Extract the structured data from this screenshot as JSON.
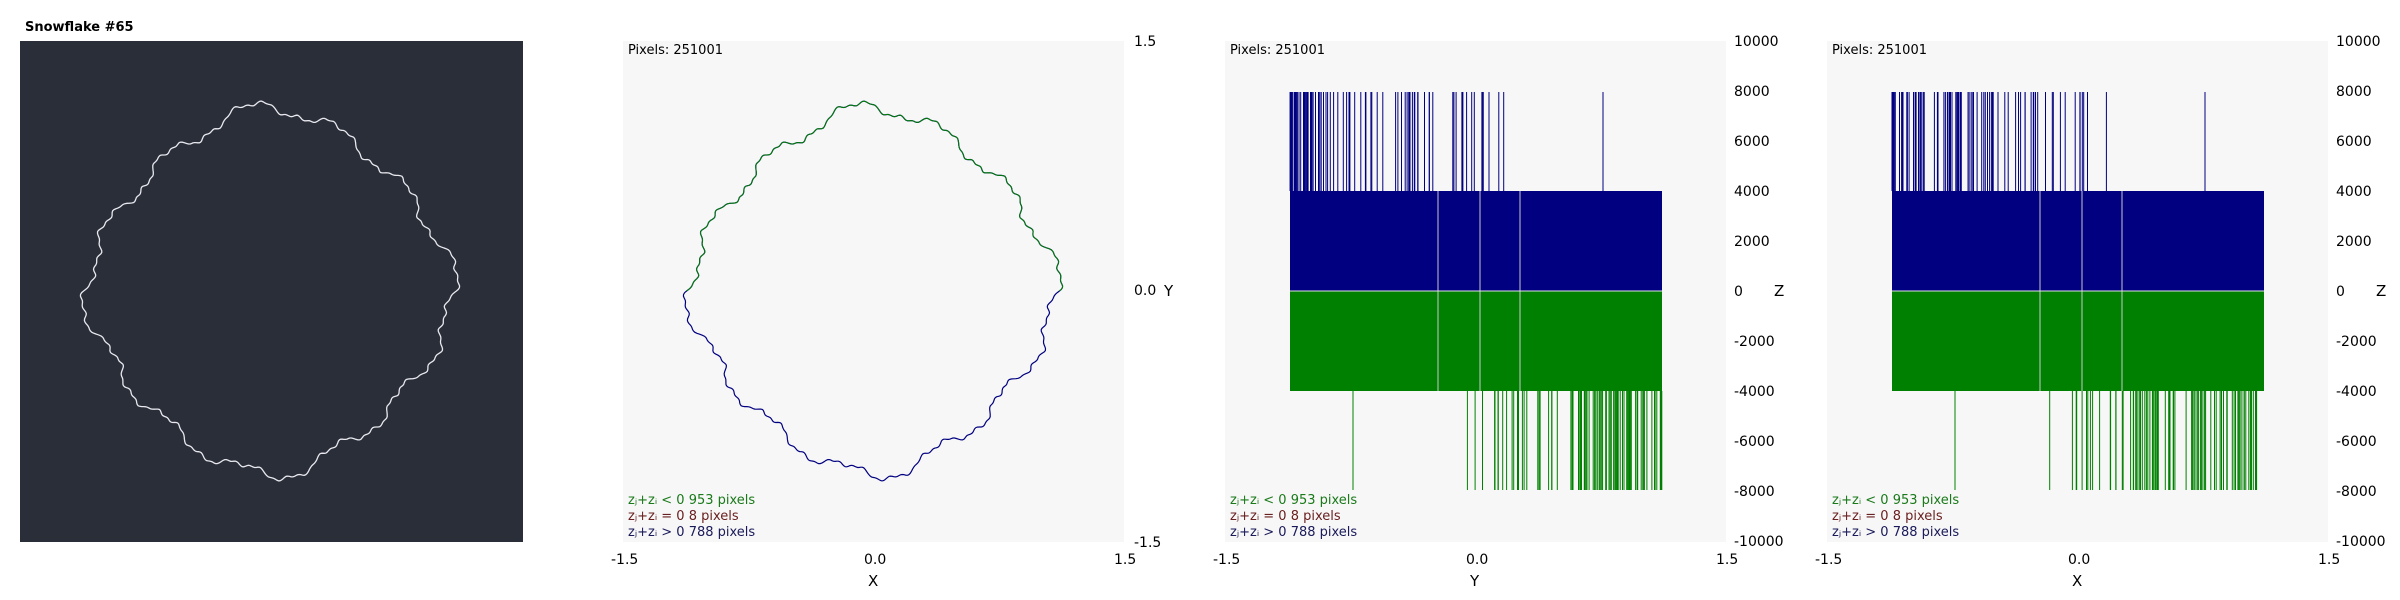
{
  "colors": {
    "dark_bg": "#2a2e39",
    "plot_bg": "#f7f7f7",
    "neg_green": "#008000",
    "pos_navy": "#000080",
    "zero_red": "#6a2020"
  },
  "panel1": {
    "title": "Snowflake #65"
  },
  "panel2": {
    "pixels_label": "Pixels: 251001",
    "x_ticks": [
      "-1.5",
      "0.0",
      "1.5"
    ],
    "y_ticks": [
      "1.5",
      "0.0",
      "-1.5"
    ],
    "x_axis_label": "X",
    "y_axis_label": "Y",
    "legend": [
      "zⱼ+zᵢ < 0  953 pixels",
      "zⱼ+zᵢ = 0  8 pixels",
      "zⱼ+zᵢ > 0  788 pixels"
    ]
  },
  "panel3": {
    "pixels_label": "Pixels: 251001",
    "x_ticks": [
      "-1.5",
      "0.0",
      "1.5"
    ],
    "z_ticks": [
      "10000",
      "8000",
      "6000",
      "4000",
      "2000",
      "0",
      "-2000",
      "-4000",
      "-6000",
      "-8000",
      "-10000"
    ],
    "x_axis_label": "Y",
    "z_axis_label": "Z",
    "legend": [
      "zⱼ+zᵢ < 0  953 pixels",
      "zⱼ+zᵢ = 0  8 pixels",
      "zⱼ+zᵢ > 0  788 pixels"
    ]
  },
  "panel4": {
    "pixels_label": "Pixels: 251001",
    "x_ticks": [
      "-1.5",
      "0.0",
      "1.5"
    ],
    "z_ticks": [
      "10000",
      "8000",
      "6000",
      "4000",
      "2000",
      "0",
      "-2000",
      "-4000",
      "-6000",
      "-8000",
      "-10000"
    ],
    "x_axis_label": "X",
    "z_axis_label": "Z",
    "legend": [
      "zⱼ+zᵢ < 0  953 pixels",
      "zⱼ+zᵢ = 0  8 pixels",
      "zⱼ+zᵢ > 0  788 pixels"
    ]
  }
}
